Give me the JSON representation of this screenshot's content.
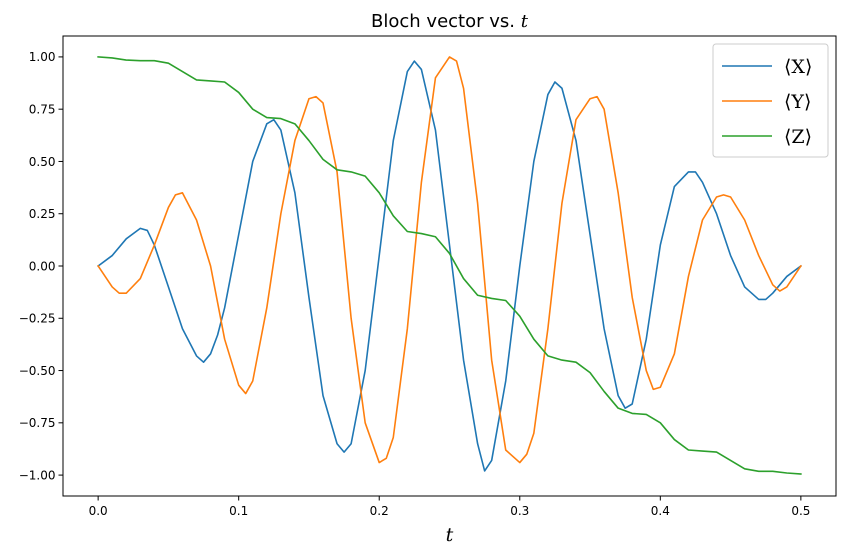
{
  "chart_data": {
    "type": "line",
    "title": "Bloch vector vs. t",
    "title_prefix": "Bloch vector vs.",
    "title_var": "t",
    "xlabel": "t",
    "ylabel": "",
    "xlim": [
      -0.025,
      0.525
    ],
    "ylim": [
      -1.1,
      1.1
    ],
    "xticks": [
      0.0,
      0.1,
      0.2,
      0.3,
      0.4,
      0.5
    ],
    "xtick_labels": [
      "0.0",
      "0.1",
      "0.2",
      "0.3",
      "0.4",
      "0.5"
    ],
    "yticks": [
      -1.0,
      -0.75,
      -0.5,
      -0.25,
      0.0,
      0.25,
      0.5,
      0.75,
      1.0
    ],
    "ytick_labels": [
      "−1.00",
      "−0.75",
      "−0.50",
      "−0.25",
      "0.00",
      "0.25",
      "0.50",
      "0.75",
      "1.00"
    ],
    "grid": false,
    "legend_position": "top-right",
    "series": [
      {
        "name": "⟨X⟩",
        "color": "#1f77b4",
        "x": [
          0.0,
          0.01,
          0.02,
          0.03,
          0.035,
          0.04,
          0.05,
          0.06,
          0.07,
          0.075,
          0.08,
          0.085,
          0.09,
          0.1,
          0.11,
          0.12,
          0.125,
          0.13,
          0.14,
          0.15,
          0.16,
          0.17,
          0.175,
          0.18,
          0.19,
          0.2,
          0.21,
          0.22,
          0.225,
          0.23,
          0.24,
          0.25,
          0.26,
          0.27,
          0.275,
          0.28,
          0.29,
          0.3,
          0.31,
          0.32,
          0.325,
          0.33,
          0.34,
          0.35,
          0.36,
          0.37,
          0.375,
          0.38,
          0.39,
          0.4,
          0.41,
          0.42,
          0.425,
          0.43,
          0.44,
          0.45,
          0.46,
          0.47,
          0.475,
          0.48,
          0.49,
          0.5
        ],
        "y": [
          0.0,
          0.05,
          0.13,
          0.18,
          0.17,
          0.1,
          -0.1,
          -0.3,
          -0.43,
          -0.46,
          -0.42,
          -0.33,
          -0.2,
          0.15,
          0.5,
          0.68,
          0.7,
          0.65,
          0.35,
          -0.15,
          -0.62,
          -0.85,
          -0.89,
          -0.85,
          -0.5,
          0.05,
          0.6,
          0.93,
          0.98,
          0.94,
          0.65,
          0.1,
          -0.45,
          -0.85,
          -0.98,
          -0.93,
          -0.55,
          0.0,
          0.5,
          0.82,
          0.88,
          0.85,
          0.6,
          0.15,
          -0.3,
          -0.62,
          -0.68,
          -0.66,
          -0.35,
          0.1,
          0.38,
          0.45,
          0.45,
          0.4,
          0.25,
          0.05,
          -0.1,
          -0.16,
          -0.16,
          -0.13,
          -0.05,
          0.0
        ]
      },
      {
        "name": "⟨Y⟩",
        "color": "#ff7f0e",
        "x": [
          0.0,
          0.01,
          0.015,
          0.02,
          0.03,
          0.04,
          0.05,
          0.055,
          0.06,
          0.07,
          0.08,
          0.09,
          0.1,
          0.105,
          0.11,
          0.12,
          0.13,
          0.14,
          0.15,
          0.155,
          0.16,
          0.17,
          0.18,
          0.19,
          0.2,
          0.205,
          0.21,
          0.22,
          0.23,
          0.24,
          0.25,
          0.255,
          0.26,
          0.27,
          0.28,
          0.29,
          0.3,
          0.305,
          0.31,
          0.32,
          0.33,
          0.34,
          0.35,
          0.355,
          0.36,
          0.37,
          0.38,
          0.39,
          0.395,
          0.4,
          0.41,
          0.42,
          0.43,
          0.44,
          0.445,
          0.45,
          0.46,
          0.47,
          0.48,
          0.485,
          0.49,
          0.5
        ],
        "y": [
          0.0,
          -0.1,
          -0.13,
          -0.13,
          -0.06,
          0.1,
          0.28,
          0.34,
          0.35,
          0.22,
          0.0,
          -0.35,
          -0.57,
          -0.61,
          -0.55,
          -0.2,
          0.25,
          0.6,
          0.8,
          0.81,
          0.78,
          0.45,
          -0.25,
          -0.75,
          -0.94,
          -0.92,
          -0.82,
          -0.3,
          0.4,
          0.9,
          1.0,
          0.98,
          0.85,
          0.3,
          -0.45,
          -0.88,
          -0.94,
          -0.9,
          -0.8,
          -0.3,
          0.3,
          0.7,
          0.8,
          0.81,
          0.75,
          0.35,
          -0.15,
          -0.5,
          -0.59,
          -0.58,
          -0.42,
          -0.05,
          0.22,
          0.33,
          0.34,
          0.33,
          0.22,
          0.05,
          -0.09,
          -0.12,
          -0.1,
          0.0
        ]
      },
      {
        "name": "⟨Z⟩",
        "color": "#2ca02c",
        "x": [
          0.0,
          0.01,
          0.02,
          0.03,
          0.04,
          0.05,
          0.06,
          0.07,
          0.08,
          0.09,
          0.1,
          0.11,
          0.12,
          0.13,
          0.14,
          0.15,
          0.16,
          0.17,
          0.18,
          0.19,
          0.2,
          0.21,
          0.22,
          0.23,
          0.24,
          0.25,
          0.26,
          0.27,
          0.28,
          0.29,
          0.3,
          0.31,
          0.32,
          0.33,
          0.34,
          0.35,
          0.36,
          0.37,
          0.38,
          0.39,
          0.4,
          0.41,
          0.42,
          0.43,
          0.44,
          0.45,
          0.46,
          0.47,
          0.48,
          0.49,
          0.5
        ],
        "y": [
          1.0,
          0.995,
          0.985,
          0.982,
          0.982,
          0.97,
          0.93,
          0.89,
          0.885,
          0.88,
          0.83,
          0.75,
          0.71,
          0.705,
          0.68,
          0.6,
          0.51,
          0.46,
          0.45,
          0.43,
          0.35,
          0.24,
          0.165,
          0.155,
          0.14,
          0.06,
          -0.06,
          -0.14,
          -0.155,
          -0.165,
          -0.24,
          -0.35,
          -0.43,
          -0.45,
          -0.46,
          -0.51,
          -0.6,
          -0.68,
          -0.705,
          -0.71,
          -0.75,
          -0.83,
          -0.88,
          -0.885,
          -0.89,
          -0.93,
          -0.97,
          -0.982,
          -0.982,
          -0.99,
          -0.995
        ]
      }
    ]
  }
}
